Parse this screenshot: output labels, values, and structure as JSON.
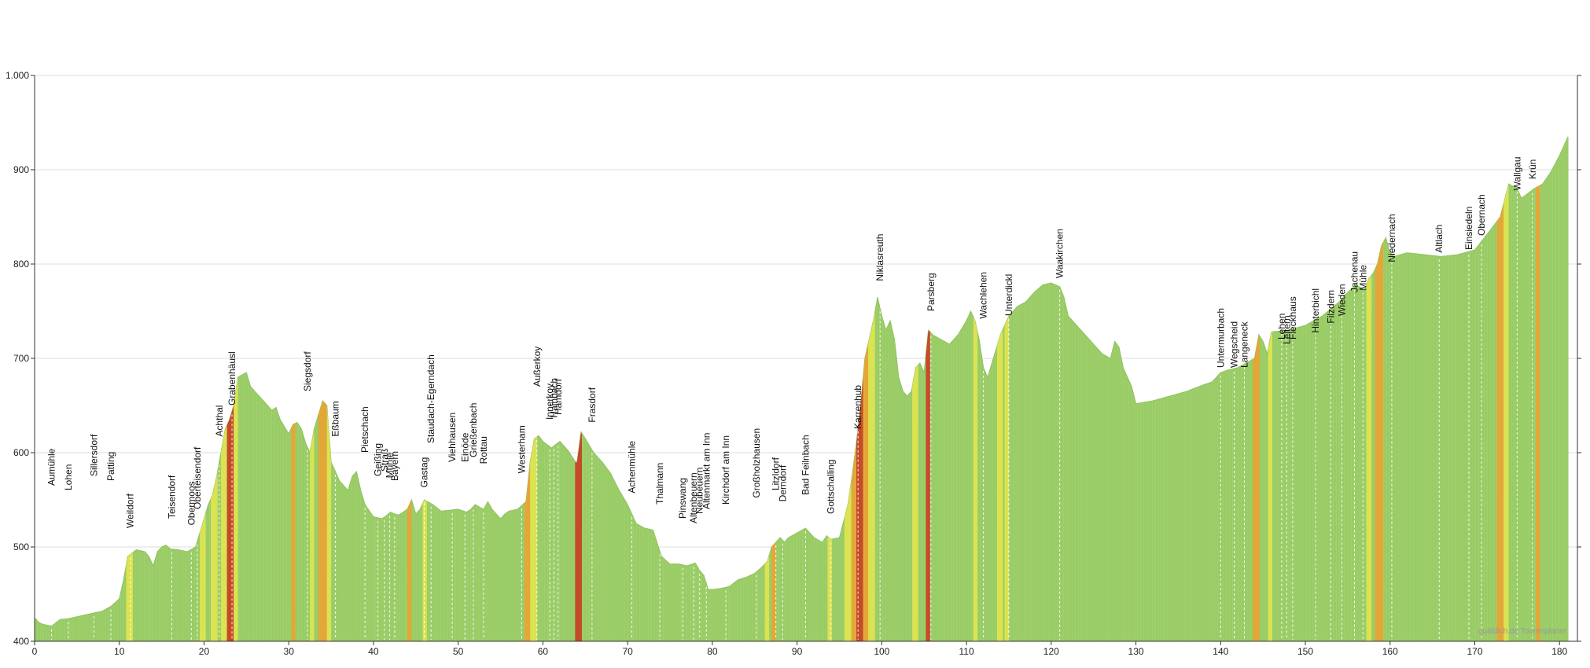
{
  "chart_data": {
    "type": "area",
    "xlim": [
      0,
      181
    ],
    "ylim": [
      400,
      1000
    ],
    "x_ticks": [
      0,
      10,
      20,
      30,
      40,
      50,
      60,
      70,
      80,
      90,
      100,
      110,
      120,
      130,
      140,
      150,
      160,
      170,
      180
    ],
    "y_ticks": [
      400,
      500,
      600,
      700,
      800,
      900,
      1000
    ],
    "y_tick_labels": [
      "400",
      "500",
      "600",
      "700",
      "800",
      "900",
      "1.000"
    ],
    "grid": "horizontal",
    "fill_color": "#99cc66",
    "steep_colors": [
      "#e6e64d",
      "#f0a030",
      "#cc3320"
    ],
    "elevation": [
      [
        0,
        425
      ],
      [
        0.5,
        420
      ],
      [
        1,
        418
      ],
      [
        2,
        416
      ],
      [
        3,
        423
      ],
      [
        4,
        424
      ],
      [
        5,
        426
      ],
      [
        6,
        428
      ],
      [
        7,
        430
      ],
      [
        8,
        432
      ],
      [
        9,
        437
      ],
      [
        10,
        445
      ],
      [
        10.5,
        465
      ],
      [
        11,
        490
      ],
      [
        12,
        497
      ],
      [
        13,
        495
      ],
      [
        13.5,
        490
      ],
      [
        14,
        480
      ],
      [
        14.5,
        495
      ],
      [
        15,
        500
      ],
      [
        15.5,
        502
      ],
      [
        16,
        498
      ],
      [
        17,
        497
      ],
      [
        18,
        495
      ],
      [
        19,
        500
      ],
      [
        19.5,
        515
      ],
      [
        20,
        530
      ],
      [
        20.5,
        545
      ],
      [
        21,
        555
      ],
      [
        21.5,
        575
      ],
      [
        22,
        600
      ],
      [
        22.5,
        625
      ],
      [
        23,
        635
      ],
      [
        23.5,
        650
      ],
      [
        24,
        680
      ],
      [
        25,
        685
      ],
      [
        25.5,
        670
      ],
      [
        26,
        665
      ],
      [
        27,
        655
      ],
      [
        28,
        645
      ],
      [
        28.5,
        648
      ],
      [
        29,
        635
      ],
      [
        30,
        620
      ],
      [
        30.5,
        630
      ],
      [
        31,
        632
      ],
      [
        31.5,
        625
      ],
      [
        32,
        610
      ],
      [
        32.5,
        600
      ],
      [
        33,
        625
      ],
      [
        34,
        655
      ],
      [
        34.5,
        650
      ],
      [
        35,
        590
      ],
      [
        35.5,
        580
      ],
      [
        36,
        570
      ],
      [
        37,
        560
      ],
      [
        37.5,
        575
      ],
      [
        38,
        580
      ],
      [
        38.5,
        560
      ],
      [
        39,
        545
      ],
      [
        40,
        532
      ],
      [
        41,
        530
      ],
      [
        41.5,
        533
      ],
      [
        42,
        537
      ],
      [
        42.5,
        535
      ],
      [
        43,
        534
      ],
      [
        44,
        540
      ],
      [
        44.5,
        550
      ],
      [
        45,
        535
      ],
      [
        45.5,
        540
      ],
      [
        46,
        550
      ],
      [
        47,
        545
      ],
      [
        48,
        538
      ],
      [
        50,
        540
      ],
      [
        51,
        537
      ],
      [
        51.5,
        540
      ],
      [
        52,
        545
      ],
      [
        53,
        540
      ],
      [
        53.5,
        548
      ],
      [
        54,
        540
      ],
      [
        55,
        530
      ],
      [
        55.5,
        535
      ],
      [
        56,
        538
      ],
      [
        57,
        540
      ],
      [
        58,
        548
      ],
      [
        58.5,
        590
      ],
      [
        59,
        615
      ],
      [
        59.5,
        618
      ],
      [
        60,
        612
      ],
      [
        61,
        605
      ],
      [
        62,
        612
      ],
      [
        63,
        602
      ],
      [
        63.5,
        595
      ],
      [
        64,
        588
      ],
      [
        64.5,
        622
      ],
      [
        65,
        615
      ],
      [
        66,
        600
      ],
      [
        67,
        590
      ],
      [
        68,
        578
      ],
      [
        69,
        560
      ],
      [
        70,
        545
      ],
      [
        71,
        525
      ],
      [
        72,
        520
      ],
      [
        73,
        518
      ],
      [
        74,
        490
      ],
      [
        75,
        482
      ],
      [
        76,
        482
      ],
      [
        77,
        480
      ],
      [
        78,
        483
      ],
      [
        78.5,
        475
      ],
      [
        79,
        470
      ],
      [
        79.5,
        455
      ],
      [
        80,
        455
      ],
      [
        81,
        456
      ],
      [
        82,
        458
      ],
      [
        83,
        465
      ],
      [
        84,
        468
      ],
      [
        85,
        472
      ],
      [
        86,
        480
      ],
      [
        86.5,
        485
      ],
      [
        87,
        500
      ],
      [
        87.5,
        505
      ],
      [
        88,
        510
      ],
      [
        88.5,
        505
      ],
      [
        89,
        510
      ],
      [
        90,
        515
      ],
      [
        91,
        520
      ],
      [
        92,
        510
      ],
      [
        93,
        505
      ],
      [
        93.5,
        512
      ],
      [
        94,
        508
      ],
      [
        95,
        510
      ],
      [
        96,
        545
      ],
      [
        96.5,
        575
      ],
      [
        97,
        610
      ],
      [
        97.5,
        650
      ],
      [
        98,
        700
      ],
      [
        98.5,
        720
      ],
      [
        99,
        740
      ],
      [
        99.5,
        765
      ],
      [
        100,
        745
      ],
      [
        100.5,
        730
      ],
      [
        101,
        740
      ],
      [
        101.5,
        720
      ],
      [
        102,
        680
      ],
      [
        102.5,
        665
      ],
      [
        103,
        660
      ],
      [
        103.5,
        665
      ],
      [
        104,
        690
      ],
      [
        104.5,
        695
      ],
      [
        105,
        685
      ],
      [
        105.5,
        730
      ],
      [
        106,
        725
      ],
      [
        107,
        720
      ],
      [
        108,
        715
      ],
      [
        109,
        725
      ],
      [
        110,
        740
      ],
      [
        110.5,
        750
      ],
      [
        111,
        740
      ],
      [
        111.5,
        720
      ],
      [
        112,
        690
      ],
      [
        112.5,
        680
      ],
      [
        113,
        695
      ],
      [
        114,
        725
      ],
      [
        114.5,
        735
      ],
      [
        115,
        745
      ],
      [
        116,
        755
      ],
      [
        117,
        760
      ],
      [
        118,
        770
      ],
      [
        119,
        778
      ],
      [
        120,
        780
      ],
      [
        121,
        776
      ],
      [
        121.5,
        765
      ],
      [
        122,
        745
      ],
      [
        123,
        735
      ],
      [
        124,
        725
      ],
      [
        125,
        715
      ],
      [
        126,
        705
      ],
      [
        127,
        700
      ],
      [
        127.5,
        718
      ],
      [
        128,
        712
      ],
      [
        128.5,
        690
      ],
      [
        129,
        680
      ],
      [
        129.5,
        670
      ],
      [
        130,
        652
      ],
      [
        132,
        655
      ],
      [
        134,
        660
      ],
      [
        136,
        665
      ],
      [
        138,
        672
      ],
      [
        139,
        675
      ],
      [
        140,
        685
      ],
      [
        141,
        688
      ],
      [
        142,
        690
      ],
      [
        143,
        695
      ],
      [
        144,
        700
      ],
      [
        144.5,
        725
      ],
      [
        145,
        718
      ],
      [
        145.5,
        705
      ],
      [
        146,
        728
      ],
      [
        148,
        730
      ],
      [
        150,
        735
      ],
      [
        152,
        745
      ],
      [
        154,
        760
      ],
      [
        155,
        770
      ],
      [
        156,
        778
      ],
      [
        157,
        772
      ],
      [
        157.5,
        785
      ],
      [
        158,
        790
      ],
      [
        158.5,
        800
      ],
      [
        159,
        820
      ],
      [
        159.5,
        828
      ],
      [
        160,
        812
      ],
      [
        160.5,
        808
      ],
      [
        162,
        812
      ],
      [
        164,
        810
      ],
      [
        166,
        808
      ],
      [
        168,
        810
      ],
      [
        170,
        815
      ],
      [
        172,
        838
      ],
      [
        173,
        850
      ],
      [
        174,
        885
      ],
      [
        175,
        880
      ],
      [
        175.5,
        870
      ],
      [
        176,
        873
      ],
      [
        177,
        880
      ],
      [
        178,
        885
      ],
      [
        179,
        898
      ],
      [
        180,
        915
      ],
      [
        181,
        935
      ]
    ],
    "steep_segments": [
      [
        10.8,
        11.6,
        0
      ],
      [
        19.5,
        20.2,
        0
      ],
      [
        20.8,
        21.6,
        0
      ],
      [
        22,
        22.7,
        0
      ],
      [
        22.7,
        23.5,
        2
      ],
      [
        23.5,
        24,
        0
      ],
      [
        30.3,
        30.8,
        1
      ],
      [
        32.5,
        33,
        0
      ],
      [
        33.5,
        34.5,
        1
      ],
      [
        34.5,
        35,
        0
      ],
      [
        44,
        44.5,
        1
      ],
      [
        45.8,
        46.3,
        0
      ],
      [
        57.8,
        58.5,
        1
      ],
      [
        58.5,
        59.3,
        0
      ],
      [
        63.8,
        64.6,
        2
      ],
      [
        86.2,
        86.7,
        0
      ],
      [
        87,
        87.5,
        1
      ],
      [
        93.6,
        94.1,
        0
      ],
      [
        95.6,
        96.4,
        0
      ],
      [
        96.4,
        97,
        1
      ],
      [
        97,
        97.8,
        2
      ],
      [
        97.8,
        98.4,
        1
      ],
      [
        98.4,
        99.2,
        0
      ],
      [
        103.6,
        104.3,
        0
      ],
      [
        105.2,
        105.7,
        2
      ],
      [
        110.8,
        111.3,
        0
      ],
      [
        113.6,
        114.3,
        0
      ],
      [
        114.5,
        115,
        0
      ],
      [
        143.8,
        144.6,
        1
      ],
      [
        145.6,
        146.1,
        0
      ],
      [
        157.2,
        157.8,
        0
      ],
      [
        158.2,
        159.2,
        1
      ],
      [
        172.6,
        173.4,
        1
      ],
      [
        173.4,
        174,
        0
      ],
      [
        177.2,
        177.7,
        1
      ]
    ],
    "places": [
      {
        "name": "Aumühle",
        "x": 2
      },
      {
        "name": "Lohen",
        "x": 4
      },
      {
        "name": "Sillersdorf",
        "x": 7
      },
      {
        "name": "Patting",
        "x": 9
      },
      {
        "name": "Weildorf",
        "x": 11.3
      },
      {
        "name": "Teisendorf",
        "x": 16.2
      },
      {
        "name": "Oberteisendorf",
        "x": 19.2
      },
      {
        "name": "Obermoos",
        "x": 18.5
      },
      {
        "name": "Achthal",
        "x": 21.8
      },
      {
        "name": "Grabenhäusl",
        "x": 23.3
      },
      {
        "name": "Siegsdorf",
        "x": 32.2
      },
      {
        "name": "Eßbaum",
        "x": 35.5
      },
      {
        "name": "Pietschach",
        "x": 39
      },
      {
        "name": "Geißing",
        "x": 40.5
      },
      {
        "name": "Straß",
        "x": 41.3
      },
      {
        "name": "Mühle",
        "x": 41.9
      },
      {
        "name": "Bayern",
        "x": 42.5
      },
      {
        "name": "Gastag",
        "x": 46
      },
      {
        "name": "Staudach-Egerndach",
        "x": 46.8
      },
      {
        "name": "Viehhausen",
        "x": 49.3
      },
      {
        "name": "Einöde",
        "x": 50.8
      },
      {
        "name": "Grießenbach",
        "x": 51.8
      },
      {
        "name": "Rottau",
        "x": 53
      },
      {
        "name": "Westerham",
        "x": 57.5
      },
      {
        "name": "Außerkoy",
        "x": 59.3
      },
      {
        "name": "Innerkoy",
        "x": 60.8
      },
      {
        "name": "Hainbach",
        "x": 61.3
      },
      {
        "name": "Hamdorf",
        "x": 61.8
      },
      {
        "name": "Frasdorf",
        "x": 65.8
      },
      {
        "name": "Achenmühle",
        "x": 70.5
      },
      {
        "name": "Thalmann",
        "x": 73.8
      },
      {
        "name": "Pinswang",
        "x": 76.5
      },
      {
        "name": "Altenbeuern",
        "x": 77.8
      },
      {
        "name": "Neubeuern",
        "x": 78.5
      },
      {
        "name": "Altenmarkt am Inn",
        "x": 79.3
      },
      {
        "name": "Kirchdorf am Inn",
        "x": 81.6
      },
      {
        "name": "Großholzhausen",
        "x": 85.2
      },
      {
        "name": "Litzldorf",
        "x": 87.5
      },
      {
        "name": "Derndorf",
        "x": 88.3
      },
      {
        "name": "Bad Feilnbach",
        "x": 91
      },
      {
        "name": "Gottschalling",
        "x": 94
      },
      {
        "name": "Karrenhub",
        "x": 97.2
      },
      {
        "name": "Niklasreuth",
        "x": 99.8
      },
      {
        "name": "Parsberg",
        "x": 105.8
      },
      {
        "name": "Wachlehen",
        "x": 112
      },
      {
        "name": "Unterdickl",
        "x": 115
      },
      {
        "name": "Waakirchen",
        "x": 121
      },
      {
        "name": "Untermurbach",
        "x": 140
      },
      {
        "name": "Wegscheid",
        "x": 141.6
      },
      {
        "name": "Langeneck",
        "x": 142.8
      },
      {
        "name": "Lehen",
        "x": 147.2
      },
      {
        "name": "Leitern",
        "x": 147.8
      },
      {
        "name": "Fleckhaus",
        "x": 148.5
      },
      {
        "name": "Hinterbichl",
        "x": 151.2
      },
      {
        "name": "Filzdern",
        "x": 153
      },
      {
        "name": "Wieden",
        "x": 154.3
      },
      {
        "name": "Jachenau",
        "x": 155.8
      },
      {
        "name": "Mühle",
        "x": 156.8
      },
      {
        "name": "Niedernach",
        "x": 160.2
      },
      {
        "name": "Altlach",
        "x": 165.8
      },
      {
        "name": "Einsiedeln",
        "x": 169.3
      },
      {
        "name": "Obernach",
        "x": 170.8
      },
      {
        "name": "Wallgau",
        "x": 175
      },
      {
        "name": "Krün",
        "x": 176.8
      }
    ],
    "place_label_y": [
      565,
      560,
      575,
      570,
      520,
      530,
      540,
      523,
      617,
      650,
      665,
      617,
      600,
      575,
      580,
      573,
      570,
      563,
      610,
      590,
      590,
      595,
      588,
      578,
      670,
      635,
      637,
      640,
      632,
      557,
      545,
      530,
      525,
      535,
      540,
      545,
      552,
      560,
      548,
      555,
      535,
      625,
      782,
      750,
      742,
      745,
      785,
      690,
      690,
      690,
      720,
      715,
      720,
      727,
      737,
      745,
      770,
      772,
      802,
      812,
      815,
      830,
      878,
      890
    ],
    "credit": "quäldich.de Tourenplaner"
  }
}
